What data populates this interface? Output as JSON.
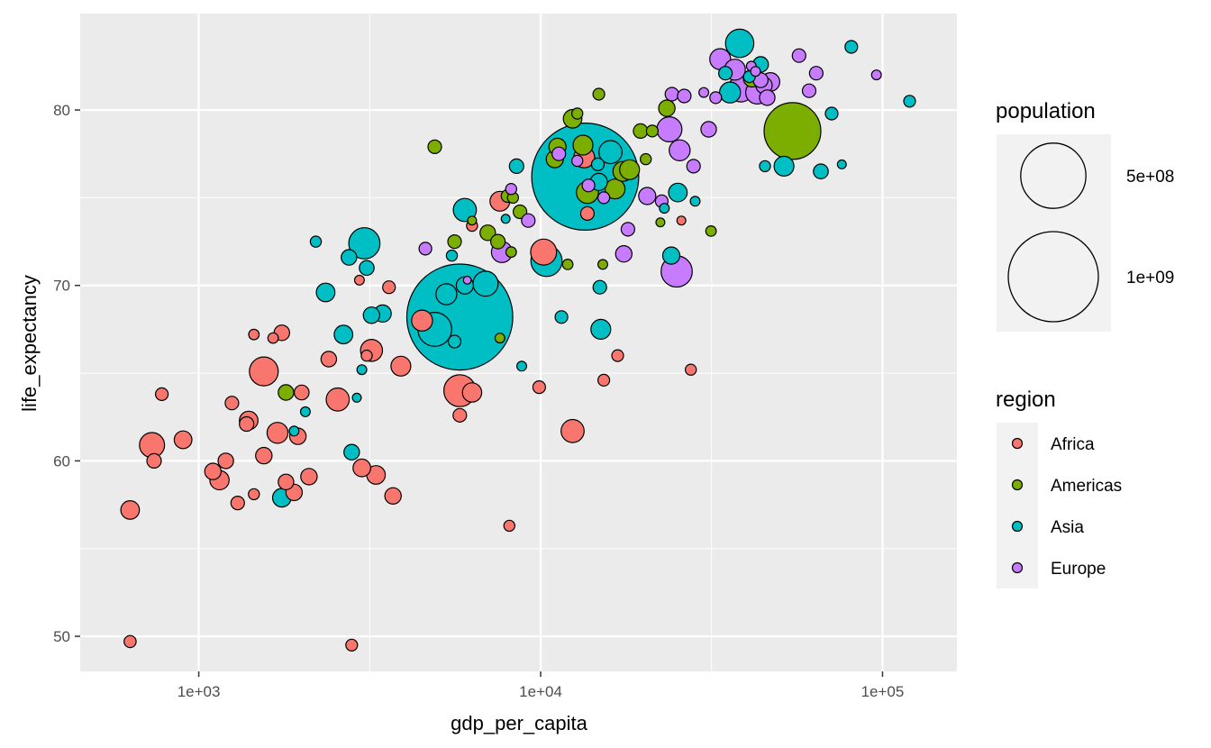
{
  "chart_data": {
    "type": "scatter",
    "title": "",
    "xlabel": "gdp_per_capita",
    "ylabel": "life_expectancy",
    "x_scale": "log10",
    "xlim": [
      450,
      165000
    ],
    "ylim": [
      48,
      85.5
    ],
    "x_ticks": [
      {
        "value": 1000,
        "label": "1e+03"
      },
      {
        "value": 10000,
        "label": "1e+04"
      },
      {
        "value": 100000,
        "label": "1e+05"
      }
    ],
    "y_ticks": [
      {
        "value": 50,
        "label": "50"
      },
      {
        "value": 60,
        "label": "60"
      },
      {
        "value": 70,
        "label": "70"
      },
      {
        "value": 80,
        "label": "80"
      }
    ],
    "grid": true,
    "size_legend": {
      "title": "population",
      "entries": [
        {
          "label": "5e+08",
          "value": 500000000
        },
        {
          "label": "1e+09",
          "value": 1000000000
        }
      ]
    },
    "color_legend": {
      "title": "region",
      "entries": [
        {
          "label": "Africa",
          "color": "#F8766D"
        },
        {
          "label": "Americas",
          "color": "#7CAE00"
        },
        {
          "label": "Asia",
          "color": "#00BFC4"
        },
        {
          "label": "Europe",
          "color": "#C77CFF"
        }
      ]
    },
    "series": [
      {
        "region": "Africa",
        "points": [
          [
            630,
            57.2,
            25
          ],
          [
            630,
            49.7,
            7
          ],
          [
            780,
            63.8,
            8
          ],
          [
            740,
            60.0,
            12
          ],
          [
            730,
            60.9,
            55
          ],
          [
            900,
            61.2,
            22
          ],
          [
            1100,
            59.4,
            18
          ],
          [
            1150,
            58.9,
            28
          ],
          [
            1200,
            60.0,
            15
          ],
          [
            1250,
            63.3,
            10
          ],
          [
            1300,
            57.6,
            10
          ],
          [
            1380,
            62.1,
            12
          ],
          [
            1400,
            62.3,
            25
          ],
          [
            1450,
            67.2,
            4
          ],
          [
            1450,
            58.1,
            5
          ],
          [
            1550,
            65.1,
            78
          ],
          [
            1550,
            60.3,
            18
          ],
          [
            1650,
            67.0,
            4
          ],
          [
            1700,
            61.6,
            35
          ],
          [
            1750,
            67.3,
            15
          ],
          [
            1800,
            58.8,
            15
          ],
          [
            1900,
            58.2,
            18
          ],
          [
            1950,
            61.4,
            18
          ],
          [
            2000,
            63.9,
            13
          ],
          [
            2100,
            59.1,
            18
          ],
          [
            2400,
            65.8,
            15
          ],
          [
            2550,
            63.5,
            45
          ],
          [
            2800,
            49.5,
            6
          ],
          [
            2950,
            70.3,
            3
          ],
          [
            3000,
            59.6,
            22
          ],
          [
            3200,
            66.3,
            40
          ],
          [
            3100,
            66.0,
            5
          ],
          [
            3300,
            59.2,
            25
          ],
          [
            3600,
            69.9,
            8
          ],
          [
            3700,
            58.0,
            18
          ],
          [
            3900,
            65.4,
            30
          ],
          [
            4500,
            68.0,
            35
          ],
          [
            5800,
            64.0,
            100
          ],
          [
            5800,
            62.6,
            10
          ],
          [
            6300,
            63.9,
            28
          ],
          [
            6300,
            73.4,
            5
          ],
          [
            7600,
            74.8,
            30
          ],
          [
            8100,
            56.3,
            5
          ],
          [
            9900,
            64.2,
            8
          ],
          [
            10200,
            71.9,
            60
          ],
          [
            12400,
            61.7,
            45
          ],
          [
            13400,
            77.3,
            35
          ],
          [
            13700,
            74.1,
            10
          ],
          [
            15300,
            64.6,
            6
          ],
          [
            16800,
            66.0,
            6
          ],
          [
            25800,
            73.7,
            2
          ],
          [
            27500,
            65.2,
            5
          ]
        ]
      },
      {
        "region": "Americas",
        "points": [
          [
            1800,
            63.9,
            15
          ],
          [
            4900,
            77.9,
            10
          ],
          [
            5600,
            72.5,
            10
          ],
          [
            6300,
            73.7,
            2
          ],
          [
            7000,
            73.0,
            15
          ],
          [
            7500,
            72.5,
            12
          ],
          [
            7600,
            67.0,
            3
          ],
          [
            8000,
            75.1,
            8
          ],
          [
            8200,
            71.9,
            4
          ],
          [
            8300,
            75.0,
            5
          ],
          [
            8700,
            74.2,
            10
          ],
          [
            11000,
            77.2,
            20
          ],
          [
            11200,
            77.9,
            20
          ],
          [
            12000,
            71.2,
            4
          ],
          [
            12400,
            79.5,
            25
          ],
          [
            12800,
            79.8,
            5
          ],
          [
            13300,
            78.0,
            30
          ],
          [
            13700,
            75.3,
            40
          ],
          [
            14800,
            80.9,
            6
          ],
          [
            15200,
            71.2,
            3
          ],
          [
            16500,
            75.5,
            30
          ],
          [
            17400,
            76.5,
            30
          ],
          [
            18200,
            76.6,
            30
          ],
          [
            19600,
            78.8,
            12
          ],
          [
            20300,
            77.2,
            5
          ],
          [
            21200,
            78.8,
            6
          ],
          [
            22400,
            73.6,
            2
          ],
          [
            23400,
            80.1,
            18
          ],
          [
            31500,
            73.1,
            4
          ],
          [
            41500,
            81.8,
            20
          ],
          [
            54500,
            78.8,
            370
          ]
        ]
      },
      {
        "region": "Asia",
        "points": [
          [
            1750,
            57.9,
            25
          ],
          [
            1900,
            61.7,
            3
          ],
          [
            2050,
            62.8,
            3
          ],
          [
            2200,
            72.5,
            5
          ],
          [
            2350,
            69.6,
            25
          ],
          [
            2650,
            67.2,
            25
          ],
          [
            2750,
            71.6,
            15
          ],
          [
            2800,
            60.5,
            15
          ],
          [
            2900,
            63.6,
            2
          ],
          [
            3000,
            65.2,
            3
          ],
          [
            3100,
            71.0,
            13
          ],
          [
            3200,
            68.3,
            18
          ],
          [
            3050,
            72.4,
            95
          ],
          [
            3450,
            68.4,
            20
          ],
          [
            4900,
            67.5,
            115
          ],
          [
            5300,
            69.5,
            35
          ],
          [
            5500,
            71.7,
            5
          ],
          [
            5600,
            66.8,
            8
          ],
          [
            5800,
            68.2,
            1410
          ],
          [
            6000,
            70.0,
            20
          ],
          [
            6000,
            74.3,
            45
          ],
          [
            6900,
            70.1,
            55
          ],
          [
            7900,
            73.8,
            2
          ],
          [
            8500,
            76.8,
            12
          ],
          [
            8800,
            65.4,
            3
          ],
          [
            10400,
            71.4,
            95
          ],
          [
            11500,
            68.2,
            8
          ],
          [
            13500,
            76.2,
            1440
          ],
          [
            14700,
            76.9,
            8
          ],
          [
            14800,
            75.9,
            20
          ],
          [
            14900,
            69.9,
            10
          ],
          [
            15000,
            67.5,
            30
          ],
          [
            16000,
            77.6,
            45
          ],
          [
            23000,
            74.4,
            3
          ],
          [
            24100,
            71.7,
            20
          ],
          [
            25200,
            75.3,
            25
          ],
          [
            28300,
            74.8,
            3
          ],
          [
            34700,
            82.1,
            10
          ],
          [
            35800,
            81.0,
            35
          ],
          [
            38200,
            83.8,
            75
          ],
          [
            40800,
            81.9,
            6
          ],
          [
            44000,
            82.6,
            15
          ],
          [
            45300,
            76.8,
            5
          ],
          [
            51500,
            76.8,
            30
          ],
          [
            66000,
            76.5,
            13
          ],
          [
            71000,
            79.8,
            8
          ],
          [
            76000,
            76.9,
            2
          ],
          [
            81000,
            83.6,
            8
          ],
          [
            120000,
            80.5,
            6
          ]
        ]
      },
      {
        "region": "Europe",
        "points": [
          [
            4600,
            72.1,
            8
          ],
          [
            6100,
            70.3,
            1
          ],
          [
            7700,
            71.9,
            35
          ],
          [
            8200,
            75.5,
            5
          ],
          [
            9200,
            73.7,
            10
          ],
          [
            11300,
            77.5,
            10
          ],
          [
            12800,
            77.1,
            5
          ],
          [
            13800,
            75.7,
            8
          ],
          [
            15300,
            75.0,
            6
          ],
          [
            17500,
            71.8,
            18
          ],
          [
            18000,
            73.2,
            10
          ],
          [
            20500,
            75.1,
            20
          ],
          [
            22600,
            74.8,
            8
          ],
          [
            23800,
            78.9,
            55
          ],
          [
            24200,
            80.9,
            10
          ],
          [
            25000,
            70.8,
            95
          ],
          [
            25500,
            77.7,
            35
          ],
          [
            26300,
            80.8,
            10
          ],
          [
            28000,
            76.8,
            10
          ],
          [
            30000,
            81.0,
            3
          ],
          [
            31000,
            78.9,
            15
          ],
          [
            32500,
            80.7,
            6
          ],
          [
            33500,
            82.9,
            35
          ],
          [
            37000,
            82.3,
            35
          ],
          [
            38500,
            81.2,
            60
          ],
          [
            41300,
            82.5,
            3
          ],
          [
            42500,
            82.2,
            3
          ],
          [
            43000,
            81.0,
            45
          ],
          [
            44000,
            81.7,
            13
          ],
          [
            45000,
            81.4,
            18
          ],
          [
            46000,
            80.7,
            15
          ],
          [
            47000,
            81.6,
            25
          ],
          [
            57000,
            83.1,
            10
          ],
          [
            61000,
            81.1,
            10
          ],
          [
            64000,
            82.1,
            10
          ],
          [
            96000,
            82.0,
            3
          ]
        ]
      }
    ]
  }
}
